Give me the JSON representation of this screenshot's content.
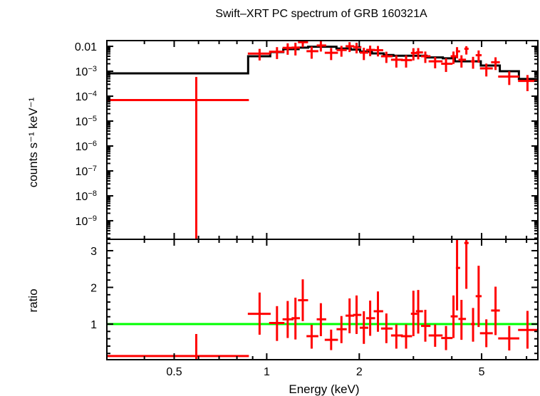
{
  "chart_data": {
    "type": "scatter",
    "title": "Swift–XRT PC spectrum of GRB 160321A",
    "xlabel": "Energy (keV)",
    "xscale": "log",
    "xlim": [
      0.302,
      7.62
    ],
    "xticks": [
      {
        "value": 0.5,
        "label": "0.5"
      },
      {
        "value": 1,
        "label": "1"
      },
      {
        "value": 2,
        "label": "2"
      },
      {
        "value": 5,
        "label": "5"
      }
    ],
    "colors": {
      "data": "#ff0000",
      "model": "#000000",
      "unity": "#00ff00",
      "frame": "#000000"
    },
    "panels": [
      {
        "name": "spectrum",
        "ylabel": "counts s⁻¹ keV⁻¹",
        "yscale": "log",
        "ylim": [
          1.8e-10,
          0.017
        ],
        "yticks": [
          {
            "value": 0.01,
            "base": "0.01",
            "exp": ""
          },
          {
            "value": 0.001,
            "base": "10",
            "exp": "−3"
          },
          {
            "value": 0.0001,
            "base": "10",
            "exp": "−4"
          },
          {
            "value": 1e-05,
            "base": "10",
            "exp": "−5"
          },
          {
            "value": 1e-06,
            "base": "10",
            "exp": "−6"
          },
          {
            "value": 1e-07,
            "base": "10",
            "exp": "−7"
          },
          {
            "value": 1e-08,
            "base": "10",
            "exp": "−8"
          },
          {
            "value": 1e-09,
            "base": "10",
            "exp": "−9"
          }
        ],
        "model": {
          "name": "model",
          "edges": [
            0.302,
            0.87,
            1.027,
            1.132,
            1.27,
            1.364,
            1.686,
            1.876,
            2.013,
            2.198,
            2.403,
            2.582,
            3.31,
            3.74,
            4.09,
            4.97,
            5.73,
            6.61,
            7.62
          ],
          "values": [
            0.00082,
            0.004,
            0.0059,
            0.0077,
            0.0089,
            0.0096,
            0.0082,
            0.0074,
            0.0062,
            0.0052,
            0.0045,
            0.0042,
            0.0036,
            0.0033,
            0.0025,
            0.0017,
            0.001,
            0.00049
          ]
        },
        "data": {
          "name": "data",
          "points": [
            {
              "e": 0.59,
              "elo": 0.302,
              "ehi": 0.875,
              "y": 7e-05,
              "ylo": 1e-11,
              "yhi": 0.00055
            },
            {
              "e": 0.948,
              "elo": 0.868,
              "ehi": 1.03,
              "y": 0.0051,
              "ylo": 0.0029,
              "yhi": 0.0074
            },
            {
              "e": 1.08,
              "elo": 1.018,
              "ehi": 1.142,
              "y": 0.0061,
              "ylo": 0.0033,
              "yhi": 0.0087
            },
            {
              "e": 1.17,
              "elo": 1.126,
              "ehi": 1.222,
              "y": 0.0087,
              "ylo": 0.0049,
              "yhi": 0.0124
            },
            {
              "e": 1.24,
              "elo": 1.205,
              "ehi": 1.282,
              "y": 0.0089,
              "ylo": 0.0046,
              "yhi": 0.0131
            },
            {
              "e": 1.31,
              "elo": 1.264,
              "ehi": 1.363,
              "y": 0.0147,
              "ylo": 0.0098,
              "yhi": 0.0196
            },
            {
              "e": 1.4,
              "elo": 1.347,
              "ehi": 1.472,
              "y": 0.0064,
              "ylo": 0.0034,
              "yhi": 0.0092
            },
            {
              "e": 1.5,
              "elo": 1.454,
              "ehi": 1.561,
              "y": 0.0108,
              "ylo": 0.0066,
              "yhi": 0.0149
            },
            {
              "e": 1.62,
              "elo": 1.544,
              "ehi": 1.705,
              "y": 0.0055,
              "ylo": 0.003,
              "yhi": 0.008
            },
            {
              "e": 1.75,
              "elo": 1.687,
              "ehi": 1.821,
              "y": 0.0071,
              "ylo": 0.0041,
              "yhi": 0.0098
            },
            {
              "e": 1.86,
              "elo": 1.805,
              "ehi": 1.927,
              "y": 0.0101,
              "ylo": 0.0063,
              "yhi": 0.0138
            },
            {
              "e": 1.96,
              "elo": 1.91,
              "ehi": 2.032,
              "y": 0.0093,
              "ylo": 0.0056,
              "yhi": 0.013
            },
            {
              "e": 2.07,
              "elo": 2.007,
              "ehi": 2.14,
              "y": 0.0056,
              "ylo": 0.003,
              "yhi": 0.0082
            },
            {
              "e": 2.17,
              "elo": 2.106,
              "ehi": 2.252,
              "y": 0.0072,
              "ylo": 0.0043,
              "yhi": 0.01
            },
            {
              "e": 2.3,
              "elo": 2.228,
              "ehi": 2.392,
              "y": 0.007,
              "ylo": 0.0042,
              "yhi": 0.0097
            },
            {
              "e": 2.45,
              "elo": 2.354,
              "ehi": 2.568,
              "y": 0.004,
              "ylo": 0.0023,
              "yhi": 0.0057
            },
            {
              "e": 2.64,
              "elo": 2.537,
              "ehi": 2.772,
              "y": 0.0029,
              "ylo": 0.0015,
              "yhi": 0.0041
            },
            {
              "e": 2.84,
              "elo": 2.733,
              "ehi": 2.97,
              "y": 0.0028,
              "ylo": 0.0015,
              "yhi": 0.0041
            },
            {
              "e": 3.0,
              "elo": 2.944,
              "ehi": 3.083,
              "y": 0.0054,
              "ylo": 0.0029,
              "yhi": 0.0079
            },
            {
              "e": 3.11,
              "elo": 3.055,
              "ehi": 3.223,
              "y": 0.0057,
              "ylo": 0.0032,
              "yhi": 0.008
            },
            {
              "e": 3.28,
              "elo": 3.177,
              "ehi": 3.41,
              "y": 0.004,
              "ylo": 0.0023,
              "yhi": 0.0058
            },
            {
              "e": 3.53,
              "elo": 3.362,
              "ehi": 3.733,
              "y": 0.0025,
              "ylo": 0.0014,
              "yhi": 0.0035
            },
            {
              "e": 3.83,
              "elo": 3.694,
              "ehi": 4.022,
              "y": 0.002,
              "ylo": 0.001,
              "yhi": 0.0031
            },
            {
              "e": 4.05,
              "elo": 3.966,
              "ehi": 4.181,
              "y": 0.004,
              "ylo": 0.0021,
              "yhi": 0.0058
            },
            {
              "e": 4.16,
              "elo": 4.123,
              "ehi": 4.256,
              "y": 0.0063,
              "ylo": 0.0035,
              "yhi": 0.0087
            },
            {
              "e": 4.3,
              "elo": 4.204,
              "ehi": 4.448,
              "y": 0.0029,
              "ylo": 0.0015,
              "yhi": 0.0041
            },
            {
              "e": 4.46,
              "elo": 4.393,
              "ehi": 4.536,
              "y": 0.008,
              "ylo": 0.005,
              "yhi": 0.0095
            },
            {
              "e": 4.69,
              "elo": 4.609,
              "ehi": 4.758,
              "y": 0.0025,
              "ylo": 0.00135,
              "yhi": 0.00355
            },
            {
              "e": 4.89,
              "elo": 4.783,
              "ehi": 5.0,
              "y": 0.0044,
              "ylo": 0.00235,
              "yhi": 0.0064
            },
            {
              "e": 5.18,
              "elo": 4.938,
              "ehi": 5.436,
              "y": 0.0013,
              "ylo": 0.00066,
              "yhi": 0.0019
            },
            {
              "e": 5.55,
              "elo": 5.369,
              "ehi": 5.732,
              "y": 0.0023,
              "ylo": 0.0012,
              "yhi": 0.0034
            },
            {
              "e": 6.15,
              "elo": 5.661,
              "ehi": 6.63,
              "y": 0.00061,
              "ylo": 0.0003,
              "yhi": 0.00093
            },
            {
              "e": 7.05,
              "elo": 6.57,
              "ehi": 7.62,
              "y": 0.00041,
              "ylo": 0.00017,
              "yhi": 0.00066
            }
          ]
        }
      },
      {
        "name": "ratio",
        "ylabel": "ratio",
        "yscale": "linear",
        "ylim": [
          0.03,
          3.31
        ],
        "yticks": [
          {
            "value": 1,
            "label": "1"
          },
          {
            "value": 2,
            "label": "2"
          },
          {
            "value": 3,
            "label": "3"
          }
        ],
        "unity_line": 1,
        "data": {
          "name": "ratio",
          "points": [
            {
              "e": 0.59,
              "elo": 0.302,
              "ehi": 0.875,
              "y": 0.13,
              "ylo": -0.1,
              "yhi": 0.71
            },
            {
              "e": 0.948,
              "elo": 0.868,
              "ehi": 1.03,
              "y": 1.28,
              "ylo": 0.73,
              "yhi": 1.84
            },
            {
              "e": 1.08,
              "elo": 1.018,
              "ehi": 1.142,
              "y": 1.03,
              "ylo": 0.56,
              "yhi": 1.47
            },
            {
              "e": 1.17,
              "elo": 1.126,
              "ehi": 1.222,
              "y": 1.13,
              "ylo": 0.64,
              "yhi": 1.61
            },
            {
              "e": 1.24,
              "elo": 1.205,
              "ehi": 1.282,
              "y": 1.16,
              "ylo": 0.6,
              "yhi": 1.7
            },
            {
              "e": 1.31,
              "elo": 1.264,
              "ehi": 1.363,
              "y": 1.65,
              "ylo": 1.1,
              "yhi": 2.2
            },
            {
              "e": 1.4,
              "elo": 1.347,
              "ehi": 1.472,
              "y": 0.67,
              "ylo": 0.35,
              "yhi": 0.96
            },
            {
              "e": 1.5,
              "elo": 1.454,
              "ehi": 1.561,
              "y": 1.13,
              "ylo": 0.69,
              "yhi": 1.55
            },
            {
              "e": 1.62,
              "elo": 1.544,
              "ehi": 1.705,
              "y": 0.57,
              "ylo": 0.31,
              "yhi": 0.83
            },
            {
              "e": 1.75,
              "elo": 1.687,
              "ehi": 1.821,
              "y": 0.86,
              "ylo": 0.5,
              "yhi": 1.2
            },
            {
              "e": 1.86,
              "elo": 1.805,
              "ehi": 1.927,
              "y": 1.23,
              "ylo": 0.77,
              "yhi": 1.68
            },
            {
              "e": 1.96,
              "elo": 1.91,
              "ehi": 2.032,
              "y": 1.25,
              "ylo": 0.75,
              "yhi": 1.76
            },
            {
              "e": 2.07,
              "elo": 2.007,
              "ehi": 2.14,
              "y": 0.9,
              "ylo": 0.48,
              "yhi": 1.33
            },
            {
              "e": 2.17,
              "elo": 2.106,
              "ehi": 2.252,
              "y": 1.16,
              "ylo": 0.7,
              "yhi": 1.62
            },
            {
              "e": 2.3,
              "elo": 2.228,
              "ehi": 2.392,
              "y": 1.35,
              "ylo": 0.81,
              "yhi": 1.87
            },
            {
              "e": 2.45,
              "elo": 2.354,
              "ehi": 2.568,
              "y": 0.88,
              "ylo": 0.5,
              "yhi": 1.27
            },
            {
              "e": 2.64,
              "elo": 2.537,
              "ehi": 2.772,
              "y": 0.69,
              "ylo": 0.35,
              "yhi": 0.97
            },
            {
              "e": 2.84,
              "elo": 2.733,
              "ehi": 2.97,
              "y": 0.67,
              "ylo": 0.35,
              "yhi": 0.97
            },
            {
              "e": 3.0,
              "elo": 2.944,
              "ehi": 3.083,
              "y": 1.28,
              "ylo": 0.69,
              "yhi": 1.89
            },
            {
              "e": 3.11,
              "elo": 3.055,
              "ehi": 3.223,
              "y": 1.35,
              "ylo": 0.76,
              "yhi": 1.91
            },
            {
              "e": 3.28,
              "elo": 3.177,
              "ehi": 3.41,
              "y": 0.95,
              "ylo": 0.54,
              "yhi": 1.37
            },
            {
              "e": 3.53,
              "elo": 3.362,
              "ehi": 3.733,
              "y": 0.69,
              "ylo": 0.4,
              "yhi": 0.97
            },
            {
              "e": 3.83,
              "elo": 3.694,
              "ehi": 4.022,
              "y": 0.62,
              "ylo": 0.31,
              "yhi": 0.93
            },
            {
              "e": 4.05,
              "elo": 3.966,
              "ehi": 4.181,
              "y": 1.21,
              "ylo": 0.64,
              "yhi": 1.76
            },
            {
              "e": 4.16,
              "elo": 4.123,
              "ehi": 4.256,
              "y": 2.53,
              "ylo": 1.39,
              "yhi": 3.6
            },
            {
              "e": 4.3,
              "elo": 4.204,
              "ehi": 4.448,
              "y": 1.14,
              "ylo": 0.59,
              "yhi": 1.64
            },
            {
              "e": 4.46,
              "elo": 4.393,
              "ehi": 4.536,
              "y": 3.21,
              "ylo": 1.98,
              "yhi": 3.6
            },
            {
              "e": 4.69,
              "elo": 4.609,
              "ehi": 4.758,
              "y": 1.0,
              "ylo": 0.54,
              "yhi": 1.42
            },
            {
              "e": 4.89,
              "elo": 4.783,
              "ehi": 5.0,
              "y": 1.76,
              "ylo": 0.94,
              "yhi": 2.57
            },
            {
              "e": 5.18,
              "elo": 4.938,
              "ehi": 5.436,
              "y": 0.75,
              "ylo": 0.39,
              "yhi": 1.11
            },
            {
              "e": 5.55,
              "elo": 5.369,
              "ehi": 5.732,
              "y": 1.37,
              "ylo": 0.72,
              "yhi": 2.0
            },
            {
              "e": 6.15,
              "elo": 5.661,
              "ehi": 6.63,
              "y": 0.61,
              "ylo": 0.3,
              "yhi": 0.93
            },
            {
              "e": 7.05,
              "elo": 6.57,
              "ehi": 7.62,
              "y": 0.84,
              "ylo": 0.35,
              "yhi": 1.34
            }
          ]
        }
      }
    ]
  }
}
